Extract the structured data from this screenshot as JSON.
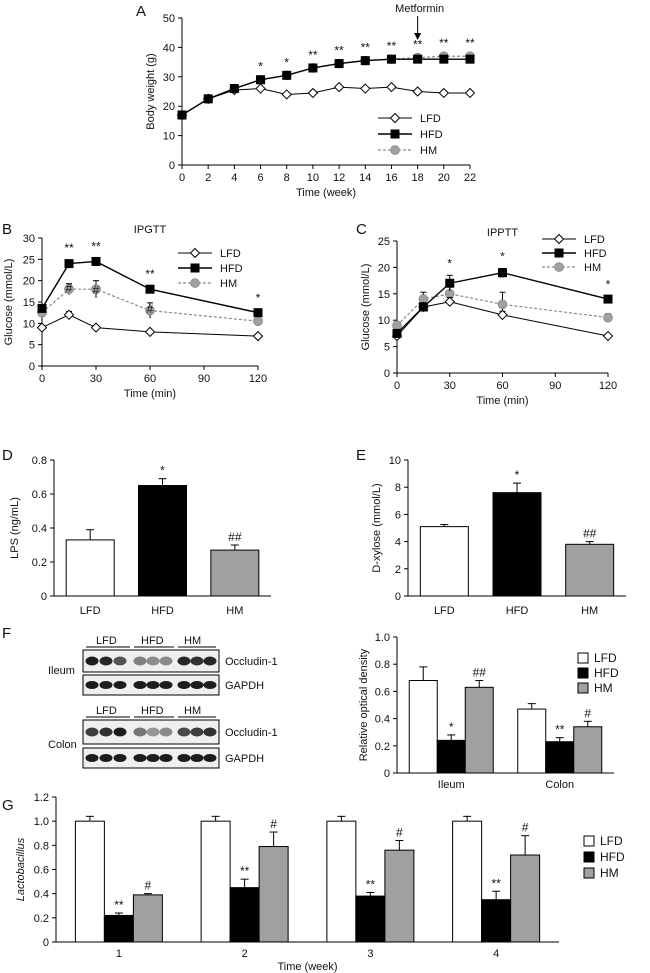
{
  "panel_letters": {
    "A": "A",
    "B": "B",
    "C": "C",
    "D": "D",
    "E": "E",
    "F": "F",
    "G": "G"
  },
  "colors": {
    "lfd": "#ffffff",
    "hfd": "#000000",
    "hm": "#a0a0a0",
    "hm_line": "#8a8a8a",
    "axis": "#000000"
  },
  "chart_data": [
    {
      "id": "A",
      "type": "line",
      "title": "",
      "xlabel": "Time (week)",
      "ylabel": "Body weight (g)",
      "xlim": [
        0,
        22
      ],
      "ylim": [
        0,
        50
      ],
      "xticks": [
        0,
        2,
        4,
        6,
        8,
        10,
        12,
        14,
        16,
        18,
        20,
        22
      ],
      "yticks": [
        0,
        10,
        20,
        30,
        40,
        50
      ],
      "annotation": "Metformin",
      "annotation_x": 18,
      "legend": [
        "LFD",
        "HFD",
        "HM"
      ],
      "series": [
        {
          "name": "LFD",
          "x": [
            0,
            2,
            4,
            6,
            8,
            10,
            12,
            14,
            16,
            18,
            20,
            22
          ],
          "y": [
            17,
            22.5,
            25.5,
            26,
            24,
            24.5,
            26.5,
            26,
            26.5,
            25,
            24.5,
            24.5
          ]
        },
        {
          "name": "HFD",
          "x": [
            0,
            2,
            4,
            6,
            8,
            10,
            12,
            14,
            16,
            18,
            20,
            22
          ],
          "y": [
            17,
            22.5,
            26,
            29,
            30.5,
            33,
            34.5,
            35.5,
            36,
            36,
            36,
            36
          ]
        },
        {
          "name": "HM",
          "x": [
            0,
            2,
            4,
            6,
            8,
            10,
            12,
            14,
            16,
            18,
            20,
            22
          ],
          "y": [
            17,
            22.5,
            26,
            29,
            30.5,
            33,
            34.5,
            35.5,
            36,
            36.5,
            37,
            37
          ]
        }
      ],
      "significance": [
        {
          "x": 6,
          "y": 29,
          "label": "*"
        },
        {
          "x": 8,
          "y": 30.5,
          "label": "*"
        },
        {
          "x": 10,
          "y": 33,
          "label": "**"
        },
        {
          "x": 12,
          "y": 34.5,
          "label": "**"
        },
        {
          "x": 14,
          "y": 35.5,
          "label": "**"
        },
        {
          "x": 16,
          "y": 36,
          "label": "**"
        },
        {
          "x": 18,
          "y": 36.5,
          "label": "**"
        },
        {
          "x": 20,
          "y": 37,
          "label": "**"
        },
        {
          "x": 22,
          "y": 37,
          "label": "**"
        }
      ]
    },
    {
      "id": "B",
      "type": "line",
      "title": "IPGTT",
      "xlabel": "Time (min)",
      "ylabel": "Glucose (mmol/L)",
      "xlim": [
        0,
        120
      ],
      "ylim": [
        0,
        30
      ],
      "xticks": [
        0,
        30,
        60,
        90,
        120
      ],
      "yticks": [
        0,
        5,
        10,
        15,
        20,
        25,
        30
      ],
      "legend": [
        "LFD",
        "HFD",
        "HM"
      ],
      "series": [
        {
          "name": "LFD",
          "x": [
            0,
            15,
            30,
            60,
            120
          ],
          "y": [
            9,
            12,
            9,
            8,
            7
          ],
          "err": [
            0.5,
            0.8,
            0.5,
            0.4,
            0.3
          ]
        },
        {
          "name": "HFD",
          "x": [
            0,
            15,
            30,
            60,
            120
          ],
          "y": [
            13.5,
            24,
            24.5,
            18,
            12.5
          ],
          "err": [
            0.7,
            0.8,
            0.7,
            0.8,
            0.6
          ]
        },
        {
          "name": "HM",
          "x": [
            0,
            15,
            30,
            60,
            120
          ],
          "y": [
            12.5,
            18,
            18,
            13,
            10.5
          ],
          "err": [
            0.8,
            1.3,
            2,
            1.8,
            0.6
          ]
        }
      ],
      "significance": [
        {
          "x": 15,
          "y": 24.8,
          "label": "**"
        },
        {
          "x": 30,
          "y": 25.2,
          "label": "**"
        },
        {
          "x": 60,
          "y": 18.8,
          "label": "**"
        },
        {
          "x": 120,
          "y": 13.1,
          "label": "*"
        },
        {
          "x": 15,
          "y": 15.5,
          "label": "#"
        },
        {
          "x": 30,
          "y": 15,
          "label": "#"
        },
        {
          "x": 60,
          "y": 10.5,
          "label": "#"
        }
      ]
    },
    {
      "id": "C",
      "type": "line",
      "title": "IPPTT",
      "xlabel": "Time (min)",
      "ylabel": "Glucose (mmol/L)",
      "xlim": [
        0,
        120
      ],
      "ylim": [
        0,
        25
      ],
      "xticks": [
        0,
        30,
        60,
        90,
        120
      ],
      "yticks": [
        0,
        5,
        10,
        15,
        20,
        25
      ],
      "legend": [
        "LFD",
        "HFD",
        "HM"
      ],
      "series": [
        {
          "name": "LFD",
          "x": [
            0,
            15,
            30,
            60,
            120
          ],
          "y": [
            7,
            12.5,
            13.5,
            11,
            7
          ],
          "err": [
            0.4,
            0.8,
            0.8,
            0.7,
            0.3
          ]
        },
        {
          "name": "HFD",
          "x": [
            0,
            15,
            30,
            60,
            120
          ],
          "y": [
            7.5,
            12.5,
            17,
            19,
            14
          ],
          "err": [
            0.5,
            0.8,
            1.5,
            0.8,
            0.5
          ]
        },
        {
          "name": "HM",
          "x": [
            0,
            15,
            30,
            60,
            120
          ],
          "y": [
            9,
            14,
            15,
            13,
            10.5
          ],
          "err": [
            0.6,
            1.3,
            1.5,
            2.3,
            0.7
          ]
        }
      ],
      "significance": [
        {
          "x": 30,
          "y": 18.5,
          "label": "*"
        },
        {
          "x": 60,
          "y": 19.8,
          "label": "*"
        },
        {
          "x": 120,
          "y": 14.5,
          "label": "*"
        },
        {
          "x": 60,
          "y": 16.5,
          "label": "#"
        }
      ]
    },
    {
      "id": "D",
      "type": "bar",
      "title": "",
      "xlabel": "",
      "ylabel": "LPS (ng/mL)",
      "ylim": [
        0,
        0.8
      ],
      "yticks": [
        0,
        0.2,
        0.4,
        0.6,
        0.8
      ],
      "categories": [
        "LFD",
        "HFD",
        "HM"
      ],
      "values": [
        0.33,
        0.65,
        0.27
      ],
      "err": [
        0.06,
        0.04,
        0.03
      ],
      "labels": [
        "",
        "*",
        "##"
      ]
    },
    {
      "id": "E",
      "type": "bar",
      "title": "",
      "xlabel": "",
      "ylabel": "D-xylose (mmol/L)",
      "ylim": [
        0,
        10
      ],
      "yticks": [
        0,
        2,
        4,
        6,
        8,
        10
      ],
      "categories": [
        "LFD",
        "HFD",
        "HM"
      ],
      "values": [
        5.1,
        7.6,
        3.8
      ],
      "err": [
        0.15,
        0.7,
        0.2
      ],
      "labels": [
        "",
        "*",
        "##"
      ]
    },
    {
      "id": "F",
      "type": "bar",
      "title": "",
      "xlabel": "",
      "ylabel": "Relative optical density",
      "ylim": [
        0,
        1.0
      ],
      "yticks": [
        0,
        0.2,
        0.4,
        0.6,
        0.8,
        1.0
      ],
      "categories": [
        "Ileum",
        "Colon"
      ],
      "legend": [
        "LFD",
        "HFD",
        "HM"
      ],
      "series": [
        {
          "name": "LFD",
          "values": [
            0.68,
            0.47
          ],
          "err": [
            0.1,
            0.04
          ]
        },
        {
          "name": "HFD",
          "values": [
            0.24,
            0.23
          ],
          "err": [
            0.04,
            0.03
          ]
        },
        {
          "name": "HM",
          "values": [
            0.63,
            0.34
          ],
          "err": [
            0.05,
            0.04
          ]
        }
      ],
      "labels": [
        [
          "",
          "*",
          "##"
        ],
        [
          "",
          "**",
          "#"
        ]
      ]
    },
    {
      "id": "G",
      "type": "bar",
      "title": "",
      "xlabel": "Time (week)",
      "ylabel": "Lactobacillus",
      "ylim": [
        0,
        1.2
      ],
      "yticks": [
        0,
        0.2,
        0.4,
        0.6,
        0.8,
        1.0,
        1.2
      ],
      "categories": [
        "1",
        "2",
        "3",
        "4"
      ],
      "legend": [
        "LFD",
        "HFD",
        "HM"
      ],
      "series": [
        {
          "name": "LFD",
          "values": [
            1.0,
            1.0,
            1.0,
            1.0
          ],
          "err": [
            0.04,
            0.04,
            0.04,
            0.04
          ]
        },
        {
          "name": "HFD",
          "values": [
            0.22,
            0.45,
            0.38,
            0.35
          ],
          "err": [
            0.02,
            0.07,
            0.03,
            0.07
          ]
        },
        {
          "name": "HM",
          "values": [
            0.39,
            0.79,
            0.76,
            0.72
          ],
          "err": [
            0.01,
            0.12,
            0.08,
            0.16
          ]
        }
      ],
      "labels": [
        [
          "",
          "**",
          "#"
        ],
        [
          "",
          "**",
          "#"
        ],
        [
          "",
          "**",
          "#"
        ],
        [
          "",
          "**",
          "#"
        ]
      ]
    }
  ],
  "blots": {
    "group_labels": [
      "LFD",
      "HFD",
      "HM"
    ],
    "ileum": {
      "tissue": "Ileum",
      "protein": "Occludin-1",
      "loading": "GAPDH"
    },
    "colon": {
      "tissue": "Colon",
      "protein": "Occludin-1",
      "loading": "GAPDH"
    }
  }
}
